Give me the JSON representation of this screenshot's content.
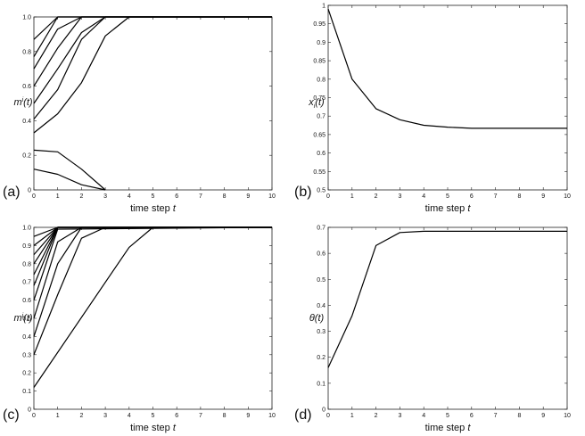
{
  "chart_data": [
    {
      "panel": "(a)",
      "type": "line",
      "xlabel": "time step",
      "xlabel_var": "t",
      "ylabel": "m^i(t)",
      "xlim": [
        0,
        10
      ],
      "ylim": [
        0,
        1
      ],
      "xticks": [
        "0",
        "1",
        "2",
        "3",
        "4",
        "5",
        "6",
        "7",
        "8",
        "9",
        "10"
      ],
      "yticks": [
        "0",
        "0.2",
        "0.4",
        "0.6",
        "0.8",
        "1.0"
      ],
      "grid": false,
      "series": [
        {
          "x": [
            0,
            1,
            10
          ],
          "y": [
            0.87,
            1.0,
            1.0
          ]
        },
        {
          "x": [
            0,
            1,
            10
          ],
          "y": [
            0.77,
            1.0,
            1.0
          ]
        },
        {
          "x": [
            0,
            1,
            2,
            10
          ],
          "y": [
            0.7,
            0.93,
            1.0,
            1.0
          ]
        },
        {
          "x": [
            0,
            1,
            2,
            10
          ],
          "y": [
            0.6,
            0.82,
            1.0,
            1.0
          ]
        },
        {
          "x": [
            0,
            1,
            2,
            3,
            10
          ],
          "y": [
            0.5,
            0.7,
            0.91,
            1.0,
            1.0
          ]
        },
        {
          "x": [
            0,
            1,
            2,
            3,
            10
          ],
          "y": [
            0.41,
            0.58,
            0.87,
            1.0,
            1.0
          ]
        },
        {
          "x": [
            0,
            1,
            2,
            3,
            4,
            10
          ],
          "y": [
            0.33,
            0.44,
            0.62,
            0.89,
            1.0,
            1.0
          ]
        },
        {
          "x": [
            0,
            1,
            2,
            3
          ],
          "y": [
            0.23,
            0.22,
            0.12,
            0.0
          ]
        },
        {
          "x": [
            0,
            1,
            2,
            3
          ],
          "y": [
            0.12,
            0.09,
            0.03,
            0.0
          ]
        }
      ]
    },
    {
      "panel": "(b)",
      "type": "line",
      "xlabel": "time step",
      "xlabel_var": "t",
      "ylabel": "x_i(t)",
      "xlim": [
        0,
        10
      ],
      "ylim": [
        0.5,
        1.0
      ],
      "xticks": [
        "0",
        "1",
        "2",
        "3",
        "4",
        "5",
        "6",
        "7",
        "8",
        "9",
        "10"
      ],
      "yticks": [
        "0.5",
        "0.55",
        "0.6",
        "0.65",
        "0.7",
        "0.75",
        "0.8",
        "0.85",
        "0.9",
        "0.95",
        "1"
      ],
      "grid": false,
      "series": [
        {
          "x": [
            0,
            1,
            2,
            3,
            4,
            5,
            6,
            7,
            8,
            9,
            10
          ],
          "y": [
            0.99,
            0.8,
            0.72,
            0.69,
            0.675,
            0.67,
            0.667,
            0.667,
            0.667,
            0.667,
            0.667
          ]
        }
      ]
    },
    {
      "panel": "(c)",
      "type": "line",
      "xlabel": "time step",
      "xlabel_var": "t",
      "ylabel": "m^i(t)",
      "xlim": [
        0,
        10
      ],
      "ylim": [
        0,
        1
      ],
      "xticks": [
        "0",
        "1",
        "2",
        "3",
        "4",
        "5",
        "6",
        "7",
        "8",
        "9",
        "10"
      ],
      "yticks": [
        "0",
        "0.1",
        "0.2",
        "0.3",
        "0.4",
        "0.5",
        "0.6",
        "0.7",
        "0.8",
        "0.9",
        "1.0"
      ],
      "grid": false,
      "series": [
        {
          "x": [
            0,
            1,
            10
          ],
          "y": [
            0.95,
            1.0,
            1.0
          ]
        },
        {
          "x": [
            0,
            1,
            10
          ],
          "y": [
            0.9,
            1.0,
            1.0
          ]
        },
        {
          "x": [
            0,
            1,
            10
          ],
          "y": [
            0.85,
            1.0,
            1.0
          ]
        },
        {
          "x": [
            0,
            1,
            10
          ],
          "y": [
            0.8,
            1.0,
            1.0
          ]
        },
        {
          "x": [
            0,
            1,
            10
          ],
          "y": [
            0.74,
            1.0,
            1.0
          ]
        },
        {
          "x": [
            0,
            1,
            10
          ],
          "y": [
            0.68,
            1.0,
            1.0
          ]
        },
        {
          "x": [
            0,
            1,
            10
          ],
          "y": [
            0.6,
            0.99,
            1.0
          ]
        },
        {
          "x": [
            0,
            1,
            2,
            10
          ],
          "y": [
            0.5,
            0.92,
            1.0,
            1.0
          ]
        },
        {
          "x": [
            0,
            1,
            2,
            10
          ],
          "y": [
            0.4,
            0.8,
            1.0,
            1.0
          ]
        },
        {
          "x": [
            0,
            1,
            2,
            3,
            10
          ],
          "y": [
            0.3,
            0.63,
            0.94,
            1.0,
            1.0
          ]
        },
        {
          "x": [
            0,
            4,
            5,
            10
          ],
          "y": [
            0.12,
            0.89,
            1.0,
            1.0
          ]
        }
      ]
    },
    {
      "panel": "(d)",
      "type": "line",
      "xlabel": "time step",
      "xlabel_var": "t",
      "ylabel": "θ(t)",
      "xlim": [
        0,
        10
      ],
      "ylim": [
        0,
        0.7
      ],
      "xticks": [
        "0",
        "1",
        "2",
        "3",
        "4",
        "5",
        "6",
        "7",
        "8",
        "9",
        "10"
      ],
      "yticks": [
        "0",
        "0.1",
        "0.2",
        "0.3",
        "0.4",
        "0.5",
        "0.6",
        "0.7"
      ],
      "grid": false,
      "series": [
        {
          "x": [
            0,
            1,
            2,
            3,
            4,
            5,
            6,
            7,
            8,
            9,
            10
          ],
          "y": [
            0.16,
            0.36,
            0.63,
            0.68,
            0.685,
            0.685,
            0.685,
            0.685,
            0.685,
            0.685,
            0.685
          ]
        }
      ]
    }
  ]
}
